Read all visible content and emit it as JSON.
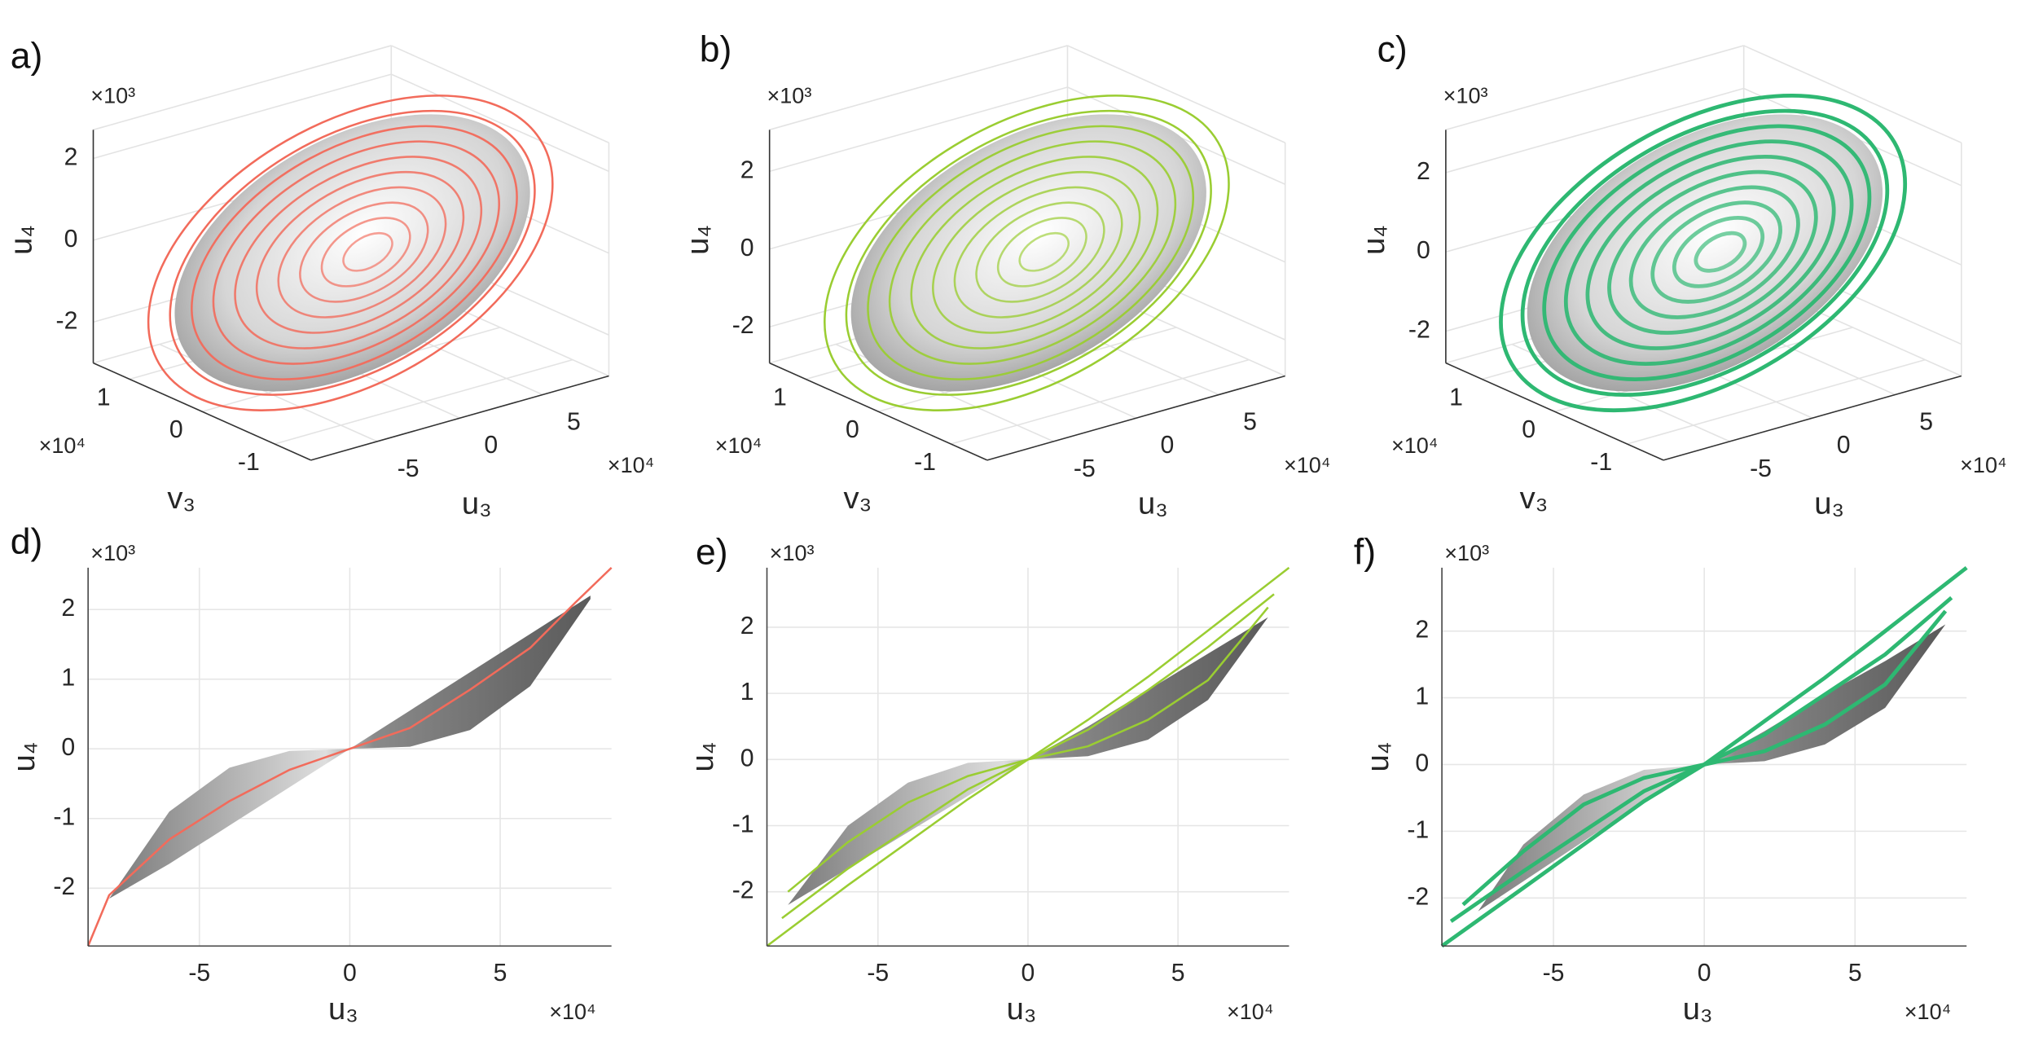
{
  "chart_data": [
    {
      "type": "3d",
      "panel_label": "a)",
      "xlabel": "u₃",
      "ylabel": "v₃",
      "zlabel": "u₄",
      "x_exponent": "×10⁴",
      "y_exponent": "×10⁴",
      "z_exponent": "×10³",
      "color": "#f26b5b",
      "xlim": [
        -9,
        9
      ],
      "xticks": [
        -5,
        0,
        5
      ],
      "ylim": [
        -1.5,
        1.5
      ],
      "yticks": [
        -1,
        0,
        1
      ],
      "zlim": [
        -3,
        2.7
      ],
      "zticks": [
        -2,
        0,
        2
      ]
    },
    {
      "type": "3d",
      "panel_label": "b)",
      "xlabel": "u₃",
      "ylabel": "v₃",
      "zlabel": "u₄",
      "x_exponent": "×10⁴",
      "y_exponent": "×10⁴",
      "z_exponent": "×10³",
      "color": "#9acd32",
      "xlim": [
        -9,
        9
      ],
      "xticks": [
        -5,
        0,
        5
      ],
      "ylim": [
        -1.5,
        1.5
      ],
      "yticks": [
        -1,
        0,
        1
      ],
      "zlim": [
        -2.93,
        3.07
      ],
      "zticks": [
        -2,
        0,
        2
      ]
    },
    {
      "type": "3d",
      "panel_label": "c)",
      "xlabel": "u₃",
      "ylabel": "v₃",
      "zlabel": "u₄",
      "x_exponent": "×10⁴",
      "y_exponent": "×10⁴",
      "z_exponent": "×10³",
      "color": "#2eb872",
      "xlim": [
        -9,
        9
      ],
      "xticks": [
        -5,
        0,
        5
      ],
      "ylim": [
        -1.5,
        1.5
      ],
      "yticks": [
        -1,
        0,
        1
      ],
      "zlim": [
        -2.8,
        3.08
      ],
      "zticks": [
        -2,
        0,
        2
      ]
    },
    {
      "type": "line",
      "panel_label": "d)",
      "xlabel": "u₃",
      "ylabel": "u₄",
      "x_exponent": "×10⁴",
      "y_exponent": "×10³",
      "xlim": [
        -8.7,
        8.7
      ],
      "xticks": [
        -5,
        0,
        5
      ],
      "ylim": [
        -2.83,
        2.6
      ],
      "yticks": [
        -2,
        -1,
        0,
        1,
        2
      ],
      "grid": true,
      "surface": {
        "x": [
          -8,
          -6,
          -4,
          -2,
          0,
          2,
          4,
          6,
          8
        ],
        "upper": [
          -2.15,
          -0.9,
          -0.27,
          -0.03,
          0,
          0.55,
          1.1,
          1.65,
          2.2
        ],
        "lower": [
          -2.15,
          -1.65,
          -1.1,
          -0.55,
          0,
          0.03,
          0.27,
          0.9,
          2.15
        ]
      },
      "series": [
        {
          "color": "#f26b5b",
          "x": [
            -8.7,
            -8,
            -6,
            -4,
            -2,
            0,
            2,
            4,
            6,
            7.5,
            8.7
          ],
          "y": [
            -2.83,
            -2.1,
            -1.3,
            -0.75,
            -0.3,
            0,
            0.3,
            0.85,
            1.45,
            2.1,
            2.6
          ]
        }
      ]
    },
    {
      "type": "line",
      "panel_label": "e)",
      "xlabel": "u₃",
      "ylabel": "u₄",
      "x_exponent": "×10⁴",
      "y_exponent": "×10³",
      "xlim": [
        -8.7,
        8.7
      ],
      "xticks": [
        -5,
        0,
        5
      ],
      "ylim": [
        -2.82,
        2.9
      ],
      "yticks": [
        -2,
        -1,
        0,
        1,
        2
      ],
      "grid": true,
      "surface": {
        "x": [
          -8,
          -6,
          -4,
          -2,
          0,
          2,
          4,
          6,
          8
        ],
        "upper": [
          -2.2,
          -1.0,
          -0.35,
          -0.05,
          0,
          0.5,
          1.05,
          1.6,
          2.15
        ],
        "lower": [
          -2.2,
          -1.65,
          -1.1,
          -0.55,
          0,
          0.05,
          0.3,
          0.9,
          2.15
        ]
      },
      "series": [
        {
          "color": "#9acd32",
          "x": [
            -8.7,
            -6,
            -4,
            -2,
            0,
            2,
            4,
            6,
            8.7
          ],
          "y": [
            -2.82,
            -1.9,
            -1.25,
            -0.6,
            0,
            0.6,
            1.25,
            1.95,
            2.9
          ]
        },
        {
          "color": "#9acd32",
          "x": [
            -8.2,
            -6,
            -4,
            -2,
            0,
            2,
            4,
            6,
            8.2
          ],
          "y": [
            -2.4,
            -1.65,
            -1.05,
            -0.45,
            0,
            0.45,
            1.05,
            1.7,
            2.5
          ]
        },
        {
          "color": "#9acd32",
          "x": [
            -8,
            -6,
            -4,
            -2,
            0,
            2,
            4,
            6,
            8
          ],
          "y": [
            -2.0,
            -1.25,
            -0.65,
            -0.25,
            0,
            0.2,
            0.6,
            1.2,
            2.3
          ]
        }
      ]
    },
    {
      "type": "line",
      "panel_label": "f)",
      "xlabel": "u₃",
      "ylabel": "u₄",
      "x_exponent": "×10⁴",
      "y_exponent": "×10³",
      "xlim": [
        -8.7,
        8.7
      ],
      "xticks": [
        -5,
        0,
        5
      ],
      "ylim": [
        -2.72,
        2.95
      ],
      "yticks": [
        -2,
        -1,
        0,
        1,
        2
      ],
      "grid": true,
      "surface": {
        "x": [
          -7.5,
          -6,
          -4,
          -2,
          0,
          2,
          4,
          6,
          8
        ],
        "upper": [
          -2.2,
          -1.2,
          -0.45,
          -0.08,
          0,
          0.5,
          1.05,
          1.55,
          2.1
        ],
        "lower": [
          -2.2,
          -1.75,
          -1.15,
          -0.55,
          0,
          0.05,
          0.3,
          0.85,
          2.1
        ]
      },
      "series": [
        {
          "color": "#2eb872",
          "x": [
            -8.7,
            -6,
            -4,
            -2,
            0,
            2,
            4,
            6,
            8.7
          ],
          "y": [
            -2.72,
            -1.85,
            -1.2,
            -0.55,
            0,
            0.65,
            1.3,
            2.0,
            2.95
          ]
        },
        {
          "color": "#2eb872",
          "x": [
            -8.4,
            -6,
            -4,
            -2,
            0,
            2,
            4,
            6,
            8.2
          ],
          "y": [
            -2.35,
            -1.6,
            -1.0,
            -0.4,
            0,
            0.45,
            1.05,
            1.65,
            2.5
          ]
        },
        {
          "color": "#2eb872",
          "x": [
            -8,
            -6,
            -4,
            -2,
            0,
            2,
            4,
            6,
            8
          ],
          "y": [
            -2.1,
            -1.3,
            -0.6,
            -0.2,
            0,
            0.2,
            0.6,
            1.2,
            2.3
          ]
        }
      ]
    }
  ]
}
